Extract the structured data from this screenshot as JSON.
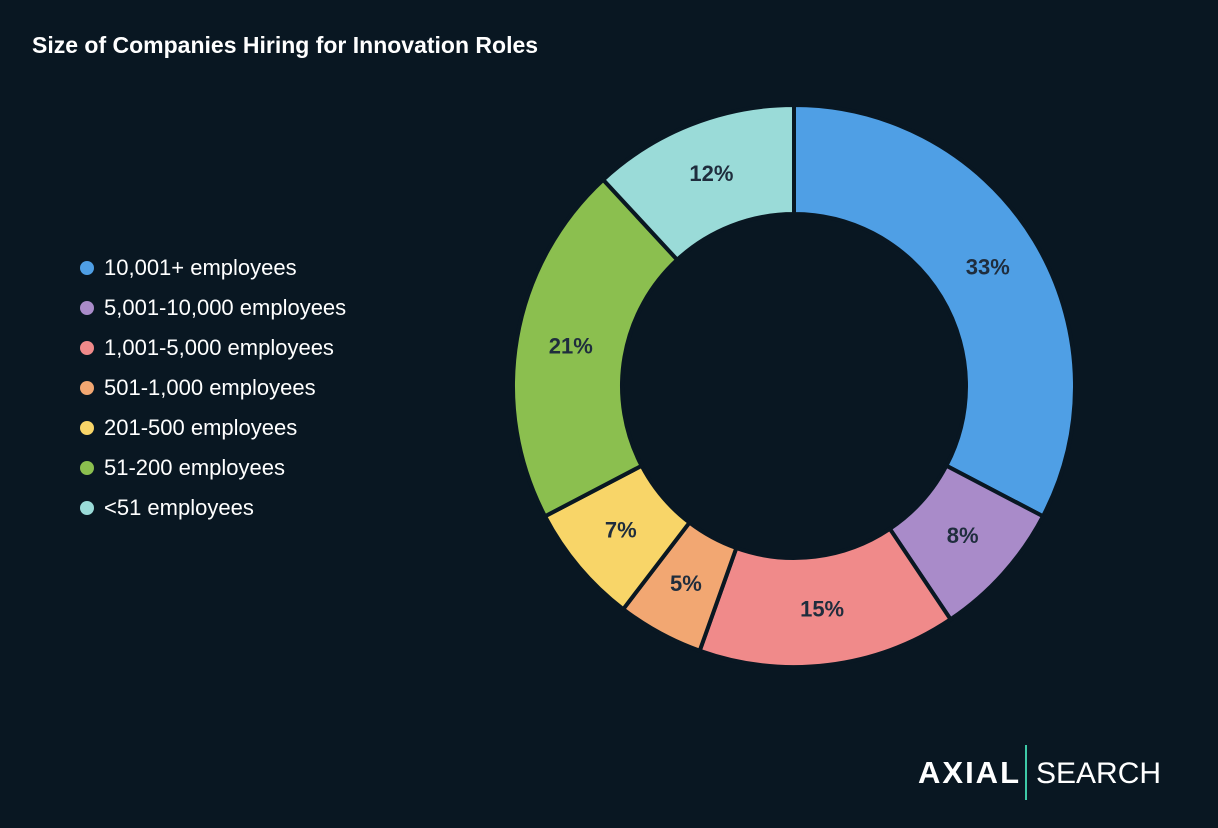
{
  "chart_data": {
    "type": "donut",
    "title": "Size of Companies Hiring for Innovation Roles",
    "categories": [
      "10,001+ employees",
      "5,001-10,000 employees",
      "1,001-5,000 employees",
      "501-1,000 employees",
      "201-500 employees",
      "51-200 employees",
      "<51 employees"
    ],
    "values": [
      33,
      8,
      15,
      5,
      7,
      21,
      12
    ],
    "value_labels": [
      "33%",
      "8%",
      "15%",
      "5%",
      "7%",
      "21%",
      "12%"
    ],
    "colors": [
      "#4f9fe5",
      "#a98bc9",
      "#f08a8a",
      "#f2a772",
      "#f8d568",
      "#8bbf4f",
      "#9adbd8"
    ],
    "legend": "left"
  },
  "logo": {
    "brand": "AXIAL",
    "product": "SEARCH"
  }
}
